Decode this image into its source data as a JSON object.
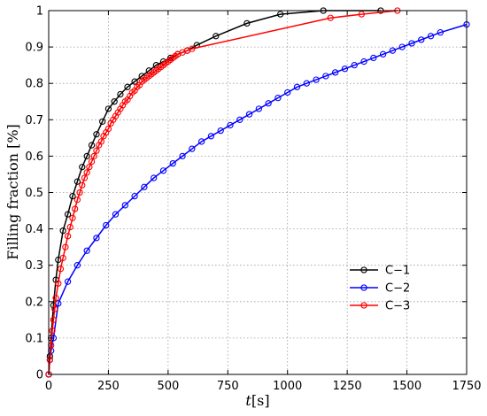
{
  "chart_data": {
    "type": "line",
    "xlabel_italic": "t",
    "xlabel_unit": "[s]",
    "ylabel": "Filling fraction [%]",
    "xlim": [
      0,
      1750
    ],
    "ylim": [
      0,
      1
    ],
    "xticks": [
      "0",
      "250",
      "500",
      "750",
      "1000",
      "1250",
      "1500",
      "1750"
    ],
    "yticks": [
      "0",
      "0.1",
      "0.2",
      "0.3",
      "0.4",
      "0.5",
      "0.6",
      "0.7",
      "0.8",
      "0.9",
      "1"
    ],
    "grid": true,
    "legend_position": "right, lower-middle",
    "series": [
      {
        "name": "C−1",
        "color": "#000000",
        "marker": "circle",
        "x": [
          0,
          5,
          10,
          20,
          30,
          40,
          60,
          80,
          100,
          120,
          140,
          160,
          180,
          200,
          225,
          250,
          275,
          300,
          330,
          360,
          390,
          420,
          450,
          480,
          510,
          540,
          580,
          620,
          700,
          830,
          970,
          1150,
          1390
        ],
        "y": [
          0,
          0.05,
          0.1,
          0.19,
          0.26,
          0.315,
          0.395,
          0.44,
          0.49,
          0.53,
          0.57,
          0.6,
          0.63,
          0.66,
          0.695,
          0.73,
          0.75,
          0.77,
          0.79,
          0.805,
          0.82,
          0.835,
          0.85,
          0.86,
          0.87,
          0.88,
          0.89,
          0.905,
          0.93,
          0.965,
          0.99,
          1.0,
          1.0
        ]
      },
      {
        "name": "C−2",
        "color": "#0000ff",
        "marker": "circle",
        "x": [
          0,
          5,
          10,
          20,
          40,
          80,
          120,
          160,
          200,
          240,
          280,
          320,
          360,
          400,
          440,
          480,
          520,
          560,
          600,
          640,
          680,
          720,
          760,
          800,
          840,
          880,
          920,
          960,
          1000,
          1040,
          1080,
          1120,
          1160,
          1200,
          1240,
          1280,
          1320,
          1360,
          1400,
          1440,
          1480,
          1520,
          1560,
          1600,
          1640,
          1750
        ],
        "y": [
          0,
          0.04,
          0.065,
          0.1,
          0.195,
          0.255,
          0.3,
          0.34,
          0.375,
          0.41,
          0.44,
          0.465,
          0.49,
          0.515,
          0.54,
          0.56,
          0.58,
          0.6,
          0.62,
          0.64,
          0.655,
          0.67,
          0.685,
          0.7,
          0.715,
          0.73,
          0.745,
          0.76,
          0.775,
          0.79,
          0.8,
          0.81,
          0.82,
          0.83,
          0.84,
          0.85,
          0.86,
          0.87,
          0.88,
          0.89,
          0.9,
          0.91,
          0.92,
          0.93,
          0.94,
          0.962
        ]
      },
      {
        "name": "C−3",
        "color": "#ff0000",
        "marker": "circle",
        "x": [
          0,
          5,
          10,
          15,
          20,
          25,
          30,
          40,
          50,
          60,
          70,
          80,
          90,
          100,
          110,
          120,
          130,
          140,
          150,
          160,
          170,
          180,
          190,
          200,
          210,
          220,
          230,
          240,
          250,
          260,
          270,
          280,
          290,
          300,
          310,
          320,
          330,
          340,
          350,
          360,
          370,
          380,
          390,
          400,
          410,
          420,
          430,
          440,
          450,
          460,
          470,
          480,
          490,
          500,
          510,
          520,
          530,
          540,
          560,
          580,
          600,
          1180,
          1310,
          1460
        ],
        "y": [
          0,
          0.04,
          0.08,
          0.12,
          0.15,
          0.18,
          0.21,
          0.25,
          0.29,
          0.32,
          0.35,
          0.38,
          0.405,
          0.43,
          0.455,
          0.48,
          0.5,
          0.52,
          0.54,
          0.555,
          0.57,
          0.585,
          0.6,
          0.615,
          0.63,
          0.64,
          0.655,
          0.665,
          0.675,
          0.69,
          0.7,
          0.71,
          0.72,
          0.73,
          0.74,
          0.75,
          0.755,
          0.765,
          0.775,
          0.78,
          0.79,
          0.795,
          0.805,
          0.81,
          0.815,
          0.82,
          0.825,
          0.83,
          0.835,
          0.84,
          0.845,
          0.85,
          0.855,
          0.86,
          0.865,
          0.87,
          0.875,
          0.88,
          0.885,
          0.89,
          0.895,
          0.98,
          0.99,
          1.0
        ]
      }
    ]
  }
}
